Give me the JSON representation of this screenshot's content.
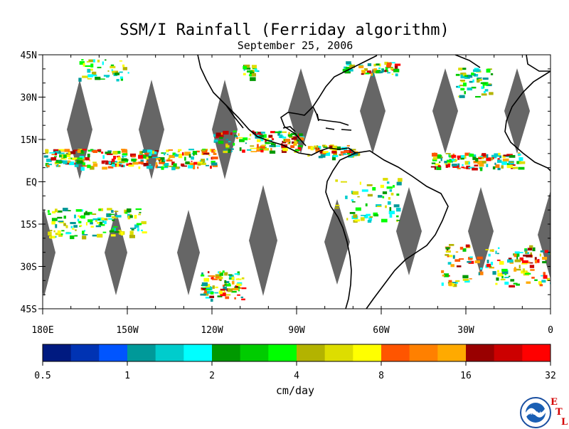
{
  "title": "SSM/I Rainfall (Ferriday algorithm)",
  "subtitle": "September 25, 2006",
  "map": {
    "lat_labels": [
      "45N",
      "30N",
      "15N",
      "EQ",
      "15S",
      "30S",
      "45S"
    ],
    "lon_labels": [
      "180E",
      "150W",
      "120W",
      "90W",
      "60W",
      "30W",
      "0"
    ],
    "lon_range": [
      -180,
      0
    ],
    "lat_range": [
      -45,
      45
    ],
    "no_data_color": "#666666",
    "coast_color": "#000000"
  },
  "colorbar": {
    "colors": [
      "#001a80",
      "#0033b3",
      "#0055ff",
      "#009999",
      "#00cccc",
      "#00ffff",
      "#009900",
      "#00cc00",
      "#00ff00",
      "#b3b300",
      "#dddd00",
      "#ffff00",
      "#ff5500",
      "#ff8000",
      "#ffaa00",
      "#990000",
      "#cc0000",
      "#ff0000"
    ],
    "tick_labels": [
      "0.5",
      "1",
      "2",
      "4",
      "8",
      "16",
      "32"
    ],
    "units": "cm/day"
  },
  "logo": {
    "text": "NOAA",
    "etl_letters": [
      "E",
      "T",
      "L"
    ]
  }
}
